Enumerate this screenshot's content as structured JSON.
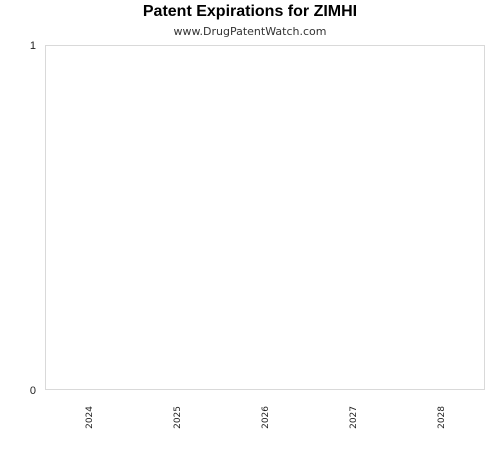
{
  "chart_data": {
    "type": "bar",
    "title": "Patent Expirations for ZIMHI",
    "subtitle": "www.DrugPatentWatch.com",
    "xlabel": "",
    "ylabel": "",
    "categories": [
      "2024",
      "2025",
      "2026",
      "2027",
      "2028"
    ],
    "values": [
      0,
      0,
      0,
      0,
      0
    ],
    "ylim": [
      0,
      1
    ],
    "yticks": [
      "0",
      "1"
    ],
    "grid": false,
    "legend": "none",
    "colors": {
      "border": "#d9d9d9",
      "text": "#222222"
    }
  }
}
